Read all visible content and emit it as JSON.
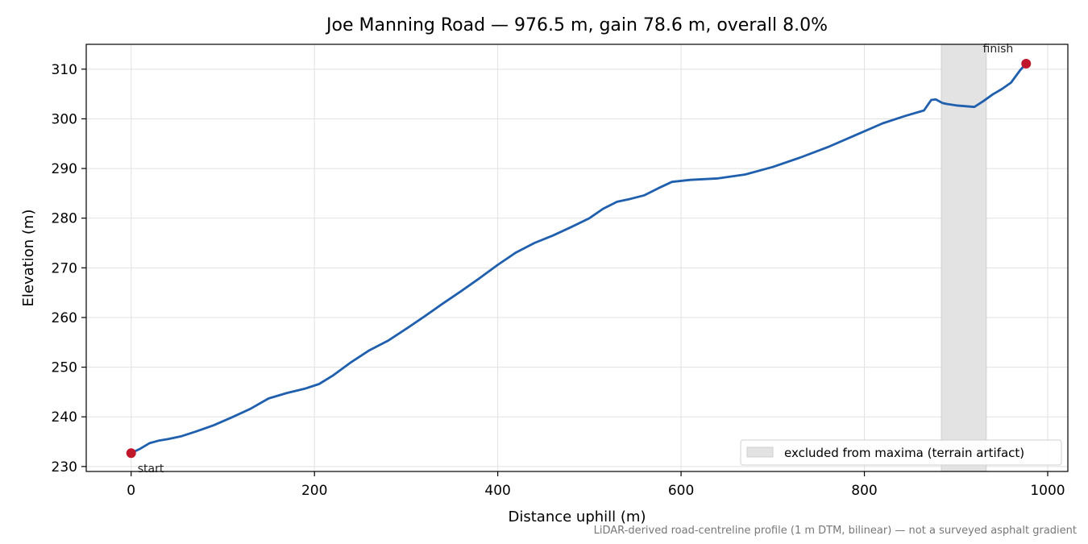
{
  "chart_data": {
    "type": "line",
    "title": "Joe Manning Road — 976.5 m, gain 78.6 m, overall 8.0%",
    "xlabel": "Distance uphill (m)",
    "ylabel": "Elevation (m)",
    "xlim": [
      -49,
      1022
    ],
    "ylim": [
      229,
      315
    ],
    "xticks": [
      0,
      200,
      400,
      600,
      800,
      1000
    ],
    "yticks": [
      230,
      240,
      250,
      260,
      270,
      280,
      290,
      300,
      310
    ],
    "grid": true,
    "legend_placement": "lower-right",
    "series": [
      {
        "color": "#1f5fad",
        "x": [
          0,
          10,
          20,
          30,
          40,
          55,
          70,
          90,
          110,
          130,
          150,
          170,
          190,
          205,
          220,
          240,
          260,
          280,
          300,
          320,
          340,
          360,
          380,
          400,
          420,
          440,
          460,
          480,
          500,
          515,
          530,
          545,
          560,
          575,
          590,
          610,
          640,
          670,
          700,
          730,
          760,
          790,
          820,
          845,
          865,
          873,
          878,
          885,
          890,
          900,
          920,
          930,
          940,
          950,
          960,
          970,
          976.5
        ],
        "y": [
          232.7,
          233.6,
          234.7,
          235.2,
          235.5,
          236.1,
          237.0,
          238.3,
          239.9,
          241.6,
          243.7,
          244.8,
          245.7,
          246.6,
          248.3,
          251.0,
          253.4,
          255.3,
          257.7,
          260.2,
          262.8,
          265.3,
          267.9,
          270.6,
          273.1,
          275.0,
          276.5,
          278.2,
          280.0,
          281.9,
          283.3,
          283.9,
          284.6,
          286.0,
          287.3,
          287.7,
          288.0,
          288.8,
          290.3,
          292.2,
          294.3,
          296.7,
          299.1,
          300.6,
          301.7,
          303.8,
          303.9,
          303.2,
          303.0,
          302.7,
          302.4,
          303.6,
          304.9,
          306.0,
          307.3,
          309.8,
          311.1
        ]
      }
    ],
    "markers": [
      {
        "label": "start",
        "x": 0,
        "y": 232.7,
        "color": "#c0182a"
      },
      {
        "label": "finish",
        "x": 976.5,
        "y": 311.1,
        "color": "#c0182a"
      }
    ],
    "shaded_regions": [
      {
        "label": "excluded from maxima (terrain artifact)",
        "x_start": 884,
        "x_end": 933,
        "color": "#e3e3e3"
      }
    ],
    "note": "LiDAR-derived road-centreline profile (1 m DTM, bilinear) — not a surveyed asphalt gradient"
  }
}
